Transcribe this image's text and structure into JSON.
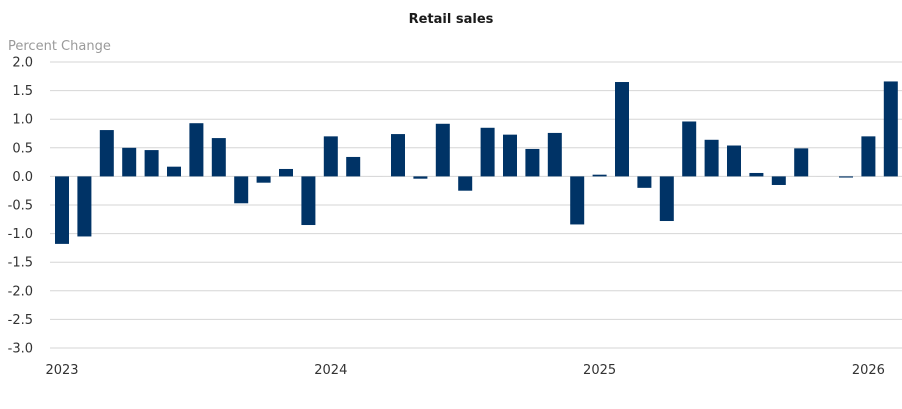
{
  "chart_data": {
    "type": "bar",
    "title": "Retail sales",
    "xlabel": "",
    "ylabel": "Percent Change",
    "ylim": [
      -3.0,
      2.0
    ],
    "yticks": [
      "2.0",
      "1.5",
      "1.0",
      "0.5",
      "0.0",
      "-0.5",
      "-1.0",
      "-1.5",
      "-2.0",
      "-2.5",
      "-3.0"
    ],
    "ytick_values": [
      2.0,
      1.5,
      1.0,
      0.5,
      0.0,
      -0.5,
      -1.0,
      -1.5,
      -2.0,
      -2.5,
      -3.0
    ],
    "grid": true,
    "legend": "none",
    "bar_color": "#003366",
    "xtick_labels": [
      {
        "label": "2023",
        "index": 0
      },
      {
        "label": "2024",
        "index": 12
      },
      {
        "label": "2025",
        "index": 24
      },
      {
        "label": "2026",
        "index": 36
      }
    ],
    "categories": [
      "2023-01",
      "2023-02",
      "2023-03",
      "2023-04",
      "2023-05",
      "2023-06",
      "2023-07",
      "2023-08",
      "2023-09",
      "2023-10",
      "2023-11",
      "2023-12",
      "2024-01",
      "2024-02",
      "2024-03",
      "2024-04",
      "2024-05",
      "2024-06",
      "2024-07",
      "2024-08",
      "2024-09",
      "2024-10",
      "2024-11",
      "2024-12",
      "2025-01",
      "2025-02",
      "2025-03",
      "2025-04",
      "2025-05",
      "2025-06",
      "2025-07",
      "2025-08",
      "2025-09",
      "2025-10",
      "2025-11",
      "2025-12",
      "2026-01",
      "2026-02"
    ],
    "values": [
      -1.18,
      -1.05,
      0.81,
      0.5,
      0.46,
      0.17,
      0.93,
      0.67,
      -0.47,
      -0.11,
      0.13,
      -0.85,
      0.7,
      0.34,
      0.0,
      0.74,
      -0.04,
      0.92,
      -0.25,
      0.85,
      0.73,
      0.48,
      0.76,
      -0.84,
      0.03,
      1.65,
      -0.2,
      -0.78,
      0.96,
      0.64,
      0.54,
      0.06,
      -0.15,
      0.49,
      0.0,
      -0.02,
      0.7,
      1.66
    ]
  }
}
